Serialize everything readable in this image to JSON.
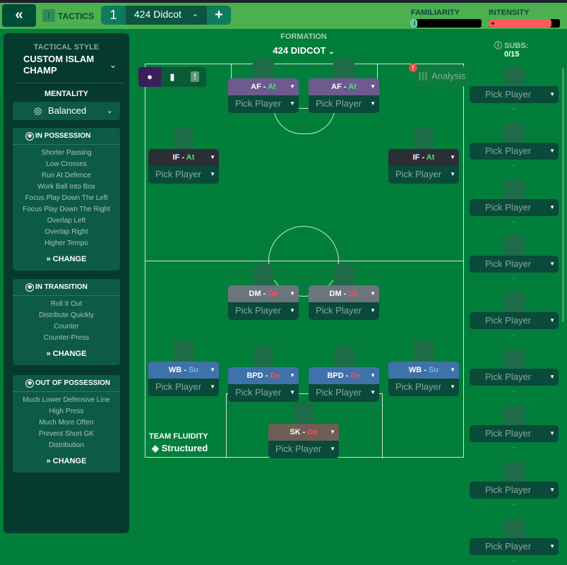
{
  "topbar": {
    "back_icon": "double-chevron-left-icon",
    "tactics_label": "TACTICS",
    "tab_number": "1",
    "tab_name": "424 Didcot",
    "add_icon": "plus-icon",
    "familiarity_label": "FAMILIARITY",
    "familiarity_level": 0.1,
    "intensity_label": "INTENSITY",
    "intensity_level": 0.88,
    "familiarity_color": "#5fd3a8",
    "intensity_color": "#ff5a5a"
  },
  "left": {
    "tactical_style_label": "TACTICAL STYLE",
    "tactical_style": "CUSTOM ISLAM CHAMP",
    "mentality_label": "MENTALITY",
    "mentality": "Balanced",
    "sections": [
      {
        "title": "IN POSSESSION",
        "items": [
          "Shorter Passing",
          "Low Crosses",
          "Run At Defence",
          "Work Ball Into Box",
          "Focus Play Down The Left",
          "Focus Play Down The Right",
          "Overlap Left",
          "Overlap Right",
          "Higher Tempo"
        ],
        "change": "CHANGE"
      },
      {
        "title": "IN TRANSITION",
        "items": [
          "Roll It Out",
          "Distribute Quickly",
          "Counter",
          "Counter-Press"
        ],
        "change": "CHANGE"
      },
      {
        "title": "OUT OF POSSESSION",
        "items": [
          "Much Lower Defensive Line",
          "High Press",
          "Much More Often",
          "Prevent Short GK",
          "Distribution"
        ],
        "change": "CHANGE"
      }
    ]
  },
  "formation": {
    "label": "FORMATION",
    "name": "424 DIDCOT",
    "analysis": "Analysis",
    "fluidity_label": "TEAM FLUIDITY",
    "fluidity": "Structured"
  },
  "pick_player": "Pick Player",
  "positions": [
    {
      "pos": "AF",
      "duty": "At"
    },
    {
      "pos": "AF",
      "duty": "At"
    },
    {
      "pos": "IF",
      "duty": "At"
    },
    {
      "pos": "IF",
      "duty": "At"
    },
    {
      "pos": "DM",
      "duty": "De"
    },
    {
      "pos": "DM",
      "duty": "De"
    },
    {
      "pos": "WB",
      "duty": "Su"
    },
    {
      "pos": "WB",
      "duty": "Su"
    },
    {
      "pos": "BPD",
      "duty": "De"
    },
    {
      "pos": "BPD",
      "duty": "De"
    },
    {
      "pos": "SK",
      "duty": "De"
    }
  ],
  "subs": {
    "label": "SUBS:",
    "count": "0/15",
    "items": [
      "Pick Player",
      "Pick Player",
      "Pick Player",
      "Pick Player",
      "Pick Player",
      "Pick Player",
      "Pick Player",
      "Pick Player",
      "Pick Player"
    ],
    "empty": "-"
  }
}
